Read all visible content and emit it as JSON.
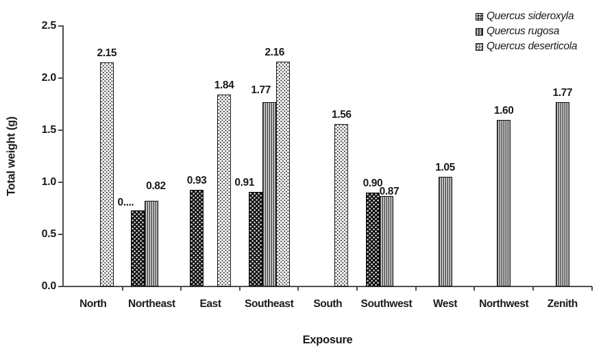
{
  "chart_data": {
    "type": "bar",
    "title": "",
    "xlabel": "Exposure",
    "ylabel": "Total weight (g)",
    "ylim": [
      0,
      2.5
    ],
    "ytick_labels": [
      "0.0",
      "0.5",
      "1.0",
      "1.5",
      "2.0",
      "2.5"
    ],
    "yticks": [
      0,
      0.5,
      1.0,
      1.5,
      2.0,
      2.5
    ],
    "grid": false,
    "legend_position": "top-right",
    "categories": [
      "North",
      "Northeast",
      "East",
      "Southeast",
      "South",
      "Southwest",
      "West",
      "Northwest",
      "Zenith"
    ],
    "series": [
      {
        "name": "Quercus sideroxyla",
        "pattern": "dark-dotted",
        "values": [
          null,
          0.73,
          0.93,
          0.91,
          null,
          0.9,
          null,
          null,
          null
        ],
        "value_labels": [
          null,
          "0....",
          "0.93",
          "0.91",
          null,
          "0.90",
          null,
          null,
          null
        ]
      },
      {
        "name": "Quercus rugosa",
        "pattern": "vertical-stripes",
        "values": [
          null,
          0.82,
          null,
          1.77,
          null,
          0.87,
          1.05,
          1.6,
          1.77
        ],
        "value_labels": [
          null,
          "0.82",
          null,
          "1.77",
          null,
          "0.87",
          "1.05",
          "1.60",
          "1.77"
        ]
      },
      {
        "name": "Quercus deserticola",
        "pattern": "light-dotted",
        "values": [
          2.15,
          null,
          1.84,
          2.16,
          1.56,
          null,
          null,
          null,
          null
        ],
        "value_labels": [
          "2.15",
          null,
          "1.84",
          "2.16",
          "1.56",
          null,
          null,
          null,
          null
        ]
      }
    ],
    "label_offsets": {
      "0-1": {
        "dx": -18,
        "dy": 2
      },
      "1-1": {
        "dx": 6,
        "dy": -8
      },
      "0-3": {
        "dx": -16,
        "dy": 0
      },
      "1-3": {
        "dx": -12,
        "dy": -4
      },
      "2-3": {
        "dx": -12,
        "dy": 0
      },
      "1-5": {
        "dx": 4,
        "dy": 7
      }
    }
  }
}
